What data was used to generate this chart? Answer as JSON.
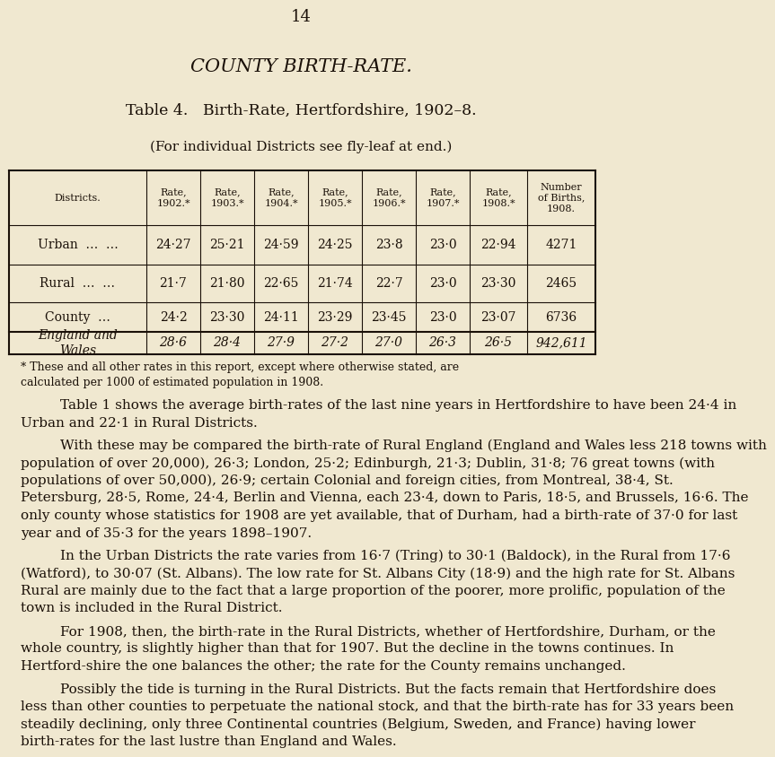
{
  "page_number": "14",
  "main_title": "COUNTY BIRTH-RATE.",
  "table_title": "Table 4.   Birth-Rate, Hertfordshire, 1902–8.",
  "table_subtitle": "(For individual Districts see fly-leaf at end.)",
  "bg_color": "#f0e8d0",
  "text_color": "#1a1008",
  "col_headers": [
    "Districts.",
    "Rate,\n1902.*",
    "Rate,\n1903.*",
    "Rate,\n1904.*",
    "Rate,\n1905.*",
    "Rate,\n1906.*",
    "Rate,\n1907.*",
    "Rate,\n1908.*",
    "Number\nof Births,\n1908."
  ],
  "table_rows": [
    [
      "Urban  …  …",
      "24·27",
      "25·21",
      "24·59",
      "24·25",
      "23·8",
      "23·0",
      "22·94",
      "4271"
    ],
    [
      "Rural  …  …",
      "21·7",
      "21·80",
      "22·65",
      "21·74",
      "22·7",
      "23·0",
      "23·30",
      "2465"
    ],
    [
      "County  …",
      "24·2",
      "23·30",
      "24·11",
      "23·29",
      "23·45",
      "23·0",
      "23·07",
      "6736"
    ],
    [
      "England and\nWales",
      "28·6",
      "28·4",
      "27·9",
      "27·2",
      "27·0",
      "26·3",
      "26·5",
      "942,611"
    ]
  ],
  "footnote_line1": "* These and all other rates in this report, except where otherwise stated, are",
  "footnote_line2": "calculated per 1000 of estimated population in 1908.",
  "paragraph1": "Table 1 shows the average birth-rates of the last nine years in Hertfordshire to have been 24·4 in Urban and 22·1 in Rural Districts.",
  "paragraph2": "With these may be compared the birth-rate of Rural England (England and Wales less 218 towns with population of over 20,000), 26·3; London, 25·2; Edinburgh, 21·3; Dublin, 31·8; 76 great towns (with populations of over 50,000), 26·9; certain Colonial and foreign cities, from Montreal, 38·4, St. Petersburg, 28·5, Rome, 24·4, Berlin and Vienna, each 23·4, down to Paris, 18·5, and Brussels, 16·6.  The only county whose statistics for 1908 are yet available, that of Durham, had a birth-rate of 37·0 for last year and of 35·3 for the years 1898–1907.",
  "paragraph3": "In the Urban Districts the rate varies from 16·7 (Tring) to 30·1 (Baldock), in the Rural from 17·6 (Watford), to 30·07 (St. Albans). The low rate for St. Albans City (18·9) and the high rate for St. Albans Rural are mainly due to the fact that a large proportion of the poorer, more prolific, population of the town is included in the Rural District.",
  "paragraph4": "For 1908, then, the birth-rate in the Rural Districts, whether of Hertfordshire, Durham, or the whole country, is slightly higher than that for 1907.  But the decline in the towns continues.  In Hertford-shire the one balances the other; the rate for the County remains unchanged.",
  "paragraph5": "Possibly the tide is turning in the Rural Districts.  But the facts remain that Hertfordshire does less than other counties to perpetuate the national stock, and that the birth-rate has for 33 years been steadily declining, only three Continental countries (Belgium, Sweden, and France) having lower birth-rates for the last lustre than England and Wales."
}
